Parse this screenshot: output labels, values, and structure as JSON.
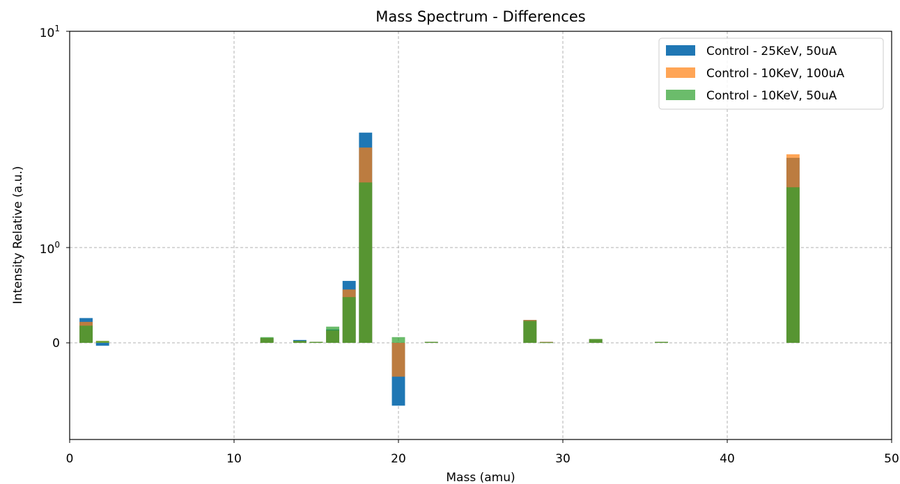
{
  "chart_data": {
    "type": "bar",
    "title": "Mass Spectrum - Differences",
    "xlabel": "Mass (amu)",
    "ylabel": "Intensity Relative (a.u.)",
    "xlim": [
      0,
      50
    ],
    "xticks": [
      "0",
      "10",
      "20",
      "30",
      "40",
      "50"
    ],
    "yscale": "symlog",
    "ylim": [
      -1,
      10
    ],
    "ytick_labels": {
      "neg_zero": "0",
      "one_base": "10",
      "one_exp": "0",
      "ten_base": "10",
      "ten_exp": "1"
    },
    "grid": true,
    "legend_position": "top-right",
    "bar_width": 0.8,
    "series": [
      {
        "name": "Control - 25KeV, 50uA",
        "color": "#1f77b4",
        "opacity": 1.0,
        "points": [
          {
            "x": 1,
            "y": 0.26
          },
          {
            "x": 2,
            "y": -0.03
          },
          {
            "x": 12,
            "y": 0.05
          },
          {
            "x": 14,
            "y": 0.03
          },
          {
            "x": 15,
            "y": 0.01
          },
          {
            "x": 16,
            "y": 0.14
          },
          {
            "x": 17,
            "y": 0.65
          },
          {
            "x": 18,
            "y": 3.4
          },
          {
            "x": 20,
            "y": -0.65
          },
          {
            "x": 22,
            "y": 0.01
          },
          {
            "x": 28,
            "y": 0.24
          },
          {
            "x": 29,
            "y": 0.01
          },
          {
            "x": 32,
            "y": 0.04
          },
          {
            "x": 36,
            "y": 0.01
          },
          {
            "x": 44,
            "y": 2.6
          }
        ]
      },
      {
        "name": "Control - 10KeV, 100uA",
        "color": "#ff7f0e",
        "opacity": 0.7,
        "points": [
          {
            "x": 1,
            "y": 0.22
          },
          {
            "x": 2,
            "y": 0.02
          },
          {
            "x": 12,
            "y": 0.05
          },
          {
            "x": 14,
            "y": 0.02
          },
          {
            "x": 15,
            "y": 0.01
          },
          {
            "x": 16,
            "y": 0.13
          },
          {
            "x": 17,
            "y": 0.56
          },
          {
            "x": 18,
            "y": 2.9
          },
          {
            "x": 20,
            "y": -0.35
          },
          {
            "x": 22,
            "y": 0.01
          },
          {
            "x": 28,
            "y": 0.24
          },
          {
            "x": 29,
            "y": 0.01
          },
          {
            "x": 32,
            "y": 0.04
          },
          {
            "x": 36,
            "y": 0.01
          },
          {
            "x": 44,
            "y": 2.7
          }
        ]
      },
      {
        "name": "Control - 10KeV, 50uA",
        "color": "#2ca02c",
        "opacity": 0.7,
        "points": [
          {
            "x": 1,
            "y": 0.18
          },
          {
            "x": 2,
            "y": 0.02
          },
          {
            "x": 12,
            "y": 0.06
          },
          {
            "x": 14,
            "y": 0.02
          },
          {
            "x": 15,
            "y": 0.01
          },
          {
            "x": 16,
            "y": 0.17
          },
          {
            "x": 17,
            "y": 0.48
          },
          {
            "x": 18,
            "y": 2.0
          },
          {
            "x": 20,
            "y": 0.06
          },
          {
            "x": 22,
            "y": 0.01
          },
          {
            "x": 28,
            "y": 0.23
          },
          {
            "x": 29,
            "y": 0.005
          },
          {
            "x": 32,
            "y": 0.04
          },
          {
            "x": 36,
            "y": 0.01
          },
          {
            "x": 44,
            "y": 1.9
          }
        ]
      }
    ]
  }
}
